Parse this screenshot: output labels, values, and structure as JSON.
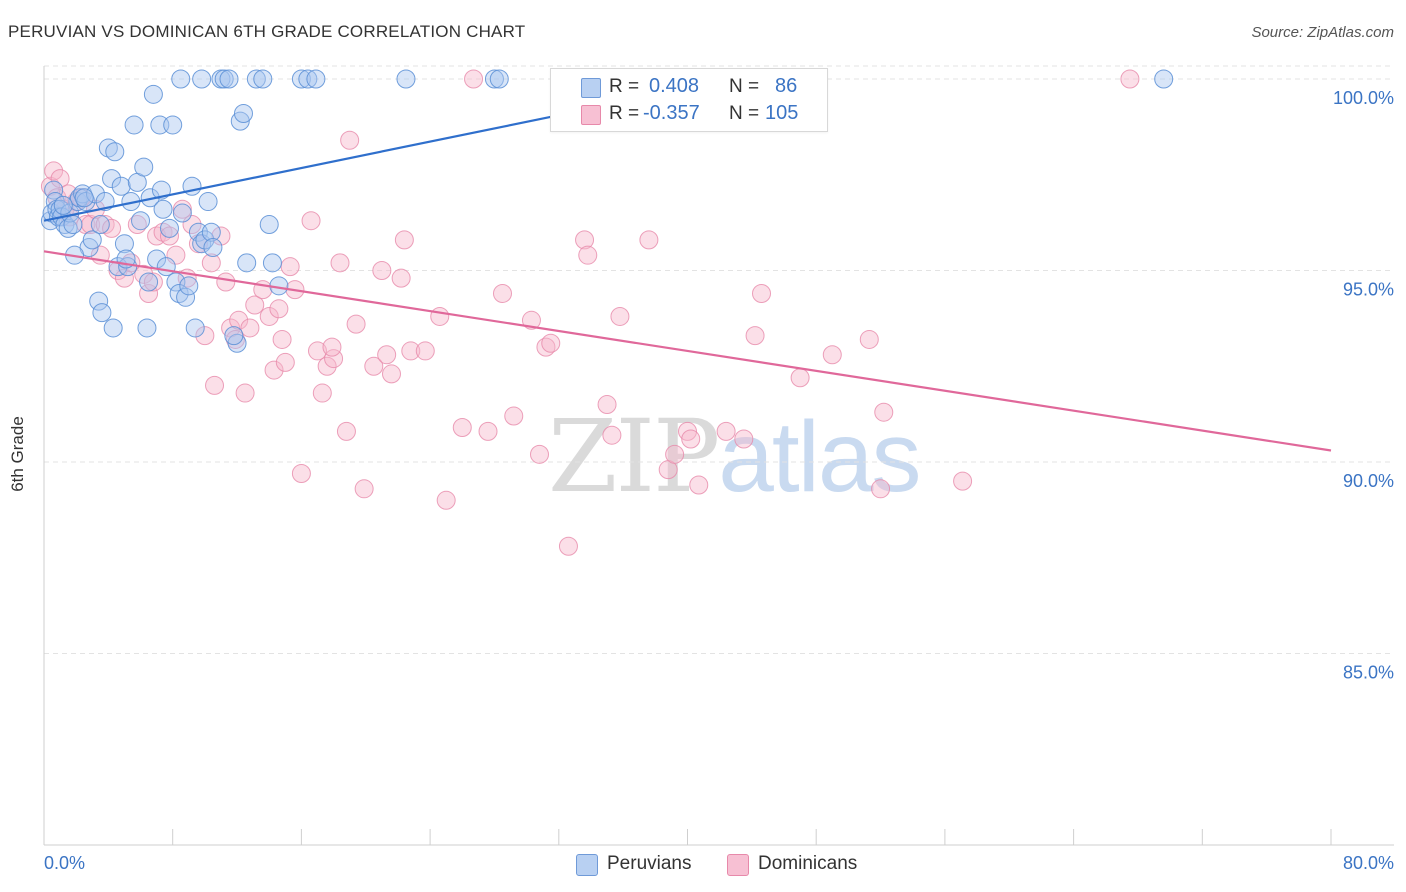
{
  "title": "PERUVIAN VS DOMINICAN 6TH GRADE CORRELATION CHART",
  "source": "Source: ZipAtlas.com",
  "watermark": {
    "zip": "ZIP",
    "atlas": "atlas"
  },
  "legend_top": {
    "rows": [
      {
        "r_label": "R =",
        "r_value": "0.408",
        "n_label": "N =",
        "n_value": "86",
        "color": "#b8d0f2"
      },
      {
        "r_label": "R =",
        "r_value": "-0.357",
        "n_label": "N =",
        "n_value": "105",
        "color": "#f7c0d3"
      }
    ]
  },
  "legend_bottom": [
    {
      "label": "Peruvians",
      "color": "#b8d0f2"
    },
    {
      "label": "Dominicans",
      "color": "#f7c0d3"
    }
  ],
  "colors": {
    "peruvian_fill": "#a9c6ef",
    "peruvian_stroke": "#5b8fd6",
    "peruvian_line": "#2f6fcc",
    "dominican_fill": "#f6b8cd",
    "dominican_stroke": "#e789aa",
    "dominican_line": "#e0689a",
    "tick_label": "#3b74c4",
    "grid": "#e3e3e3"
  },
  "chart_data": {
    "type": "scatter",
    "title": "PERUVIAN VS DOMINICAN 6TH GRADE CORRELATION CHART",
    "xlabel": "",
    "ylabel": "6th Grade",
    "xlim": [
      0,
      80
    ],
    "ylim": [
      80.0,
      100.4
    ],
    "x_tick_labels": [
      "0.0%",
      "80.0%"
    ],
    "y_ticks": [
      85.0,
      90.0,
      95.0,
      100.0
    ],
    "y_tick_labels": [
      "85.0%",
      "90.0%",
      "95.0%",
      "100.0%"
    ],
    "grid": true,
    "legend": "top-center",
    "series": [
      {
        "name": "Peruvians",
        "R": 0.408,
        "N": 86,
        "trend": {
          "x": [
            0,
            43
          ],
          "y": [
            96.3,
            100.0
          ]
        },
        "points": [
          [
            0.4,
            96.3
          ],
          [
            0.5,
            96.5
          ],
          [
            0.6,
            97.1
          ],
          [
            0.7,
            96.8
          ],
          [
            0.8,
            96.6
          ],
          [
            0.9,
            96.4
          ],
          [
            1.0,
            96.6
          ],
          [
            1.1,
            96.4
          ],
          [
            1.3,
            96.2
          ],
          [
            1.5,
            96.1
          ],
          [
            1.6,
            96.5
          ],
          [
            1.8,
            96.2
          ],
          [
            2.1,
            96.8
          ],
          [
            2.2,
            96.9
          ],
          [
            2.4,
            97.0
          ],
          [
            2.6,
            96.8
          ],
          [
            2.8,
            95.6
          ],
          [
            3.0,
            95.8
          ],
          [
            3.2,
            97.0
          ],
          [
            3.4,
            94.2
          ],
          [
            3.6,
            93.9
          ],
          [
            3.8,
            96.8
          ],
          [
            4.0,
            98.2
          ],
          [
            4.2,
            97.4
          ],
          [
            4.4,
            98.1
          ],
          [
            4.6,
            95.1
          ],
          [
            4.8,
            97.2
          ],
          [
            5.0,
            95.7
          ],
          [
            5.2,
            95.1
          ],
          [
            5.4,
            96.8
          ],
          [
            5.6,
            98.8
          ],
          [
            5.8,
            97.3
          ],
          [
            6.0,
            96.3
          ],
          [
            6.2,
            97.7
          ],
          [
            6.4,
            93.5
          ],
          [
            6.6,
            96.9
          ],
          [
            6.8,
            99.6
          ],
          [
            7.0,
            95.3
          ],
          [
            7.2,
            98.8
          ],
          [
            7.4,
            96.6
          ],
          [
            7.6,
            95.1
          ],
          [
            7.8,
            96.1
          ],
          [
            8.0,
            98.8
          ],
          [
            8.2,
            94.7
          ],
          [
            8.4,
            94.4
          ],
          [
            8.6,
            96.5
          ],
          [
            8.8,
            94.3
          ],
          [
            9.0,
            94.6
          ],
          [
            9.2,
            97.2
          ],
          [
            9.4,
            93.5
          ],
          [
            9.6,
            96.0
          ],
          [
            9.8,
            95.7
          ],
          [
            10.0,
            95.8
          ],
          [
            10.2,
            96.8
          ],
          [
            10.4,
            96.0
          ],
          [
            11.0,
            100.0
          ],
          [
            11.2,
            100.0
          ],
          [
            11.5,
            100.0
          ],
          [
            12.0,
            93.1
          ],
          [
            12.2,
            98.9
          ],
          [
            12.4,
            99.1
          ],
          [
            12.6,
            95.2
          ],
          [
            13.2,
            100.0
          ],
          [
            13.6,
            100.0
          ],
          [
            14.0,
            96.2
          ],
          [
            14.2,
            95.2
          ],
          [
            14.6,
            94.6
          ],
          [
            16.0,
            100.0
          ],
          [
            16.4,
            100.0
          ],
          [
            16.9,
            100.0
          ],
          [
            8.5,
            100.0
          ],
          [
            9.8,
            100.0
          ],
          [
            22.5,
            100.0
          ],
          [
            28.0,
            100.0
          ],
          [
            28.3,
            100.0
          ],
          [
            69.6,
            100.0
          ],
          [
            1.2,
            96.7
          ],
          [
            1.9,
            95.4
          ],
          [
            2.5,
            96.9
          ],
          [
            3.5,
            96.2
          ],
          [
            4.3,
            93.5
          ],
          [
            5.1,
            95.3
          ],
          [
            6.5,
            94.7
          ],
          [
            7.3,
            97.1
          ],
          [
            10.5,
            95.6
          ],
          [
            11.8,
            93.3
          ]
        ]
      },
      {
        "name": "Dominicans",
        "R": -0.357,
        "N": 105,
        "trend": {
          "x": [
            0,
            80
          ],
          "y": [
            95.5,
            90.3
          ]
        },
        "points": [
          [
            0.4,
            97.2
          ],
          [
            0.6,
            97.6
          ],
          [
            0.8,
            96.9
          ],
          [
            1.0,
            97.4
          ],
          [
            1.3,
            96.6
          ],
          [
            1.6,
            96.4
          ],
          [
            2.0,
            96.8
          ],
          [
            2.3,
            96.9
          ],
          [
            2.6,
            96.2
          ],
          [
            2.9,
            96.2
          ],
          [
            3.2,
            96.6
          ],
          [
            3.5,
            95.4
          ],
          [
            3.8,
            96.2
          ],
          [
            4.2,
            96.1
          ],
          [
            4.6,
            95.0
          ],
          [
            5.0,
            94.8
          ],
          [
            5.4,
            95.2
          ],
          [
            5.8,
            96.2
          ],
          [
            6.2,
            94.9
          ],
          [
            6.5,
            94.4
          ],
          [
            6.8,
            94.7
          ],
          [
            7.0,
            95.9
          ],
          [
            7.4,
            96.0
          ],
          [
            7.8,
            95.9
          ],
          [
            8.2,
            95.4
          ],
          [
            8.6,
            96.6
          ],
          [
            8.9,
            94.8
          ],
          [
            9.2,
            96.2
          ],
          [
            9.6,
            95.7
          ],
          [
            10.0,
            93.3
          ],
          [
            10.4,
            95.2
          ],
          [
            10.6,
            92.0
          ],
          [
            11.0,
            95.9
          ],
          [
            11.3,
            94.7
          ],
          [
            11.6,
            93.5
          ],
          [
            11.9,
            93.2
          ],
          [
            12.1,
            93.7
          ],
          [
            12.5,
            91.8
          ],
          [
            12.8,
            93.5
          ],
          [
            13.1,
            94.1
          ],
          [
            13.6,
            94.5
          ],
          [
            14.0,
            93.8
          ],
          [
            14.3,
            92.4
          ],
          [
            14.6,
            94.0
          ],
          [
            15.0,
            92.6
          ],
          [
            15.3,
            95.1
          ],
          [
            15.6,
            94.5
          ],
          [
            16.0,
            89.7
          ],
          [
            16.6,
            96.3
          ],
          [
            17.0,
            92.9
          ],
          [
            17.3,
            91.8
          ],
          [
            17.6,
            92.5
          ],
          [
            18.0,
            92.7
          ],
          [
            18.4,
            95.2
          ],
          [
            18.8,
            90.8
          ],
          [
            19.0,
            98.4
          ],
          [
            19.4,
            93.6
          ],
          [
            19.9,
            89.3
          ],
          [
            20.5,
            92.5
          ],
          [
            21.0,
            95.0
          ],
          [
            21.3,
            92.8
          ],
          [
            21.6,
            92.3
          ],
          [
            22.2,
            94.8
          ],
          [
            22.4,
            95.8
          ],
          [
            22.8,
            92.9
          ],
          [
            23.7,
            92.9
          ],
          [
            24.6,
            93.8
          ],
          [
            25.0,
            89.0
          ],
          [
            26.0,
            90.9
          ],
          [
            26.7,
            100.0
          ],
          [
            27.6,
            90.8
          ],
          [
            28.5,
            94.4
          ],
          [
            29.2,
            91.2
          ],
          [
            30.3,
            93.7
          ],
          [
            30.8,
            90.2
          ],
          [
            31.2,
            93.0
          ],
          [
            31.5,
            93.1
          ],
          [
            32.2,
            100.0
          ],
          [
            32.6,
            87.8
          ],
          [
            33.6,
            95.8
          ],
          [
            33.8,
            95.4
          ],
          [
            34.0,
            100.0
          ],
          [
            35.0,
            91.5
          ],
          [
            35.3,
            90.7
          ],
          [
            35.8,
            93.8
          ],
          [
            37.6,
            95.8
          ],
          [
            38.8,
            89.8
          ],
          [
            39.2,
            90.2
          ],
          [
            40.0,
            90.8
          ],
          [
            40.2,
            90.6
          ],
          [
            40.7,
            89.4
          ],
          [
            42.4,
            90.8
          ],
          [
            43.5,
            90.6
          ],
          [
            44.2,
            93.3
          ],
          [
            44.6,
            94.4
          ],
          [
            47.0,
            92.2
          ],
          [
            49.0,
            92.8
          ],
          [
            51.3,
            93.2
          ],
          [
            52.0,
            89.3
          ],
          [
            52.2,
            91.3
          ],
          [
            57.1,
            89.5
          ],
          [
            67.5,
            100.0
          ],
          [
            1.5,
            97.0
          ],
          [
            14.8,
            93.2
          ],
          [
            17.9,
            93.0
          ]
        ]
      }
    ]
  }
}
